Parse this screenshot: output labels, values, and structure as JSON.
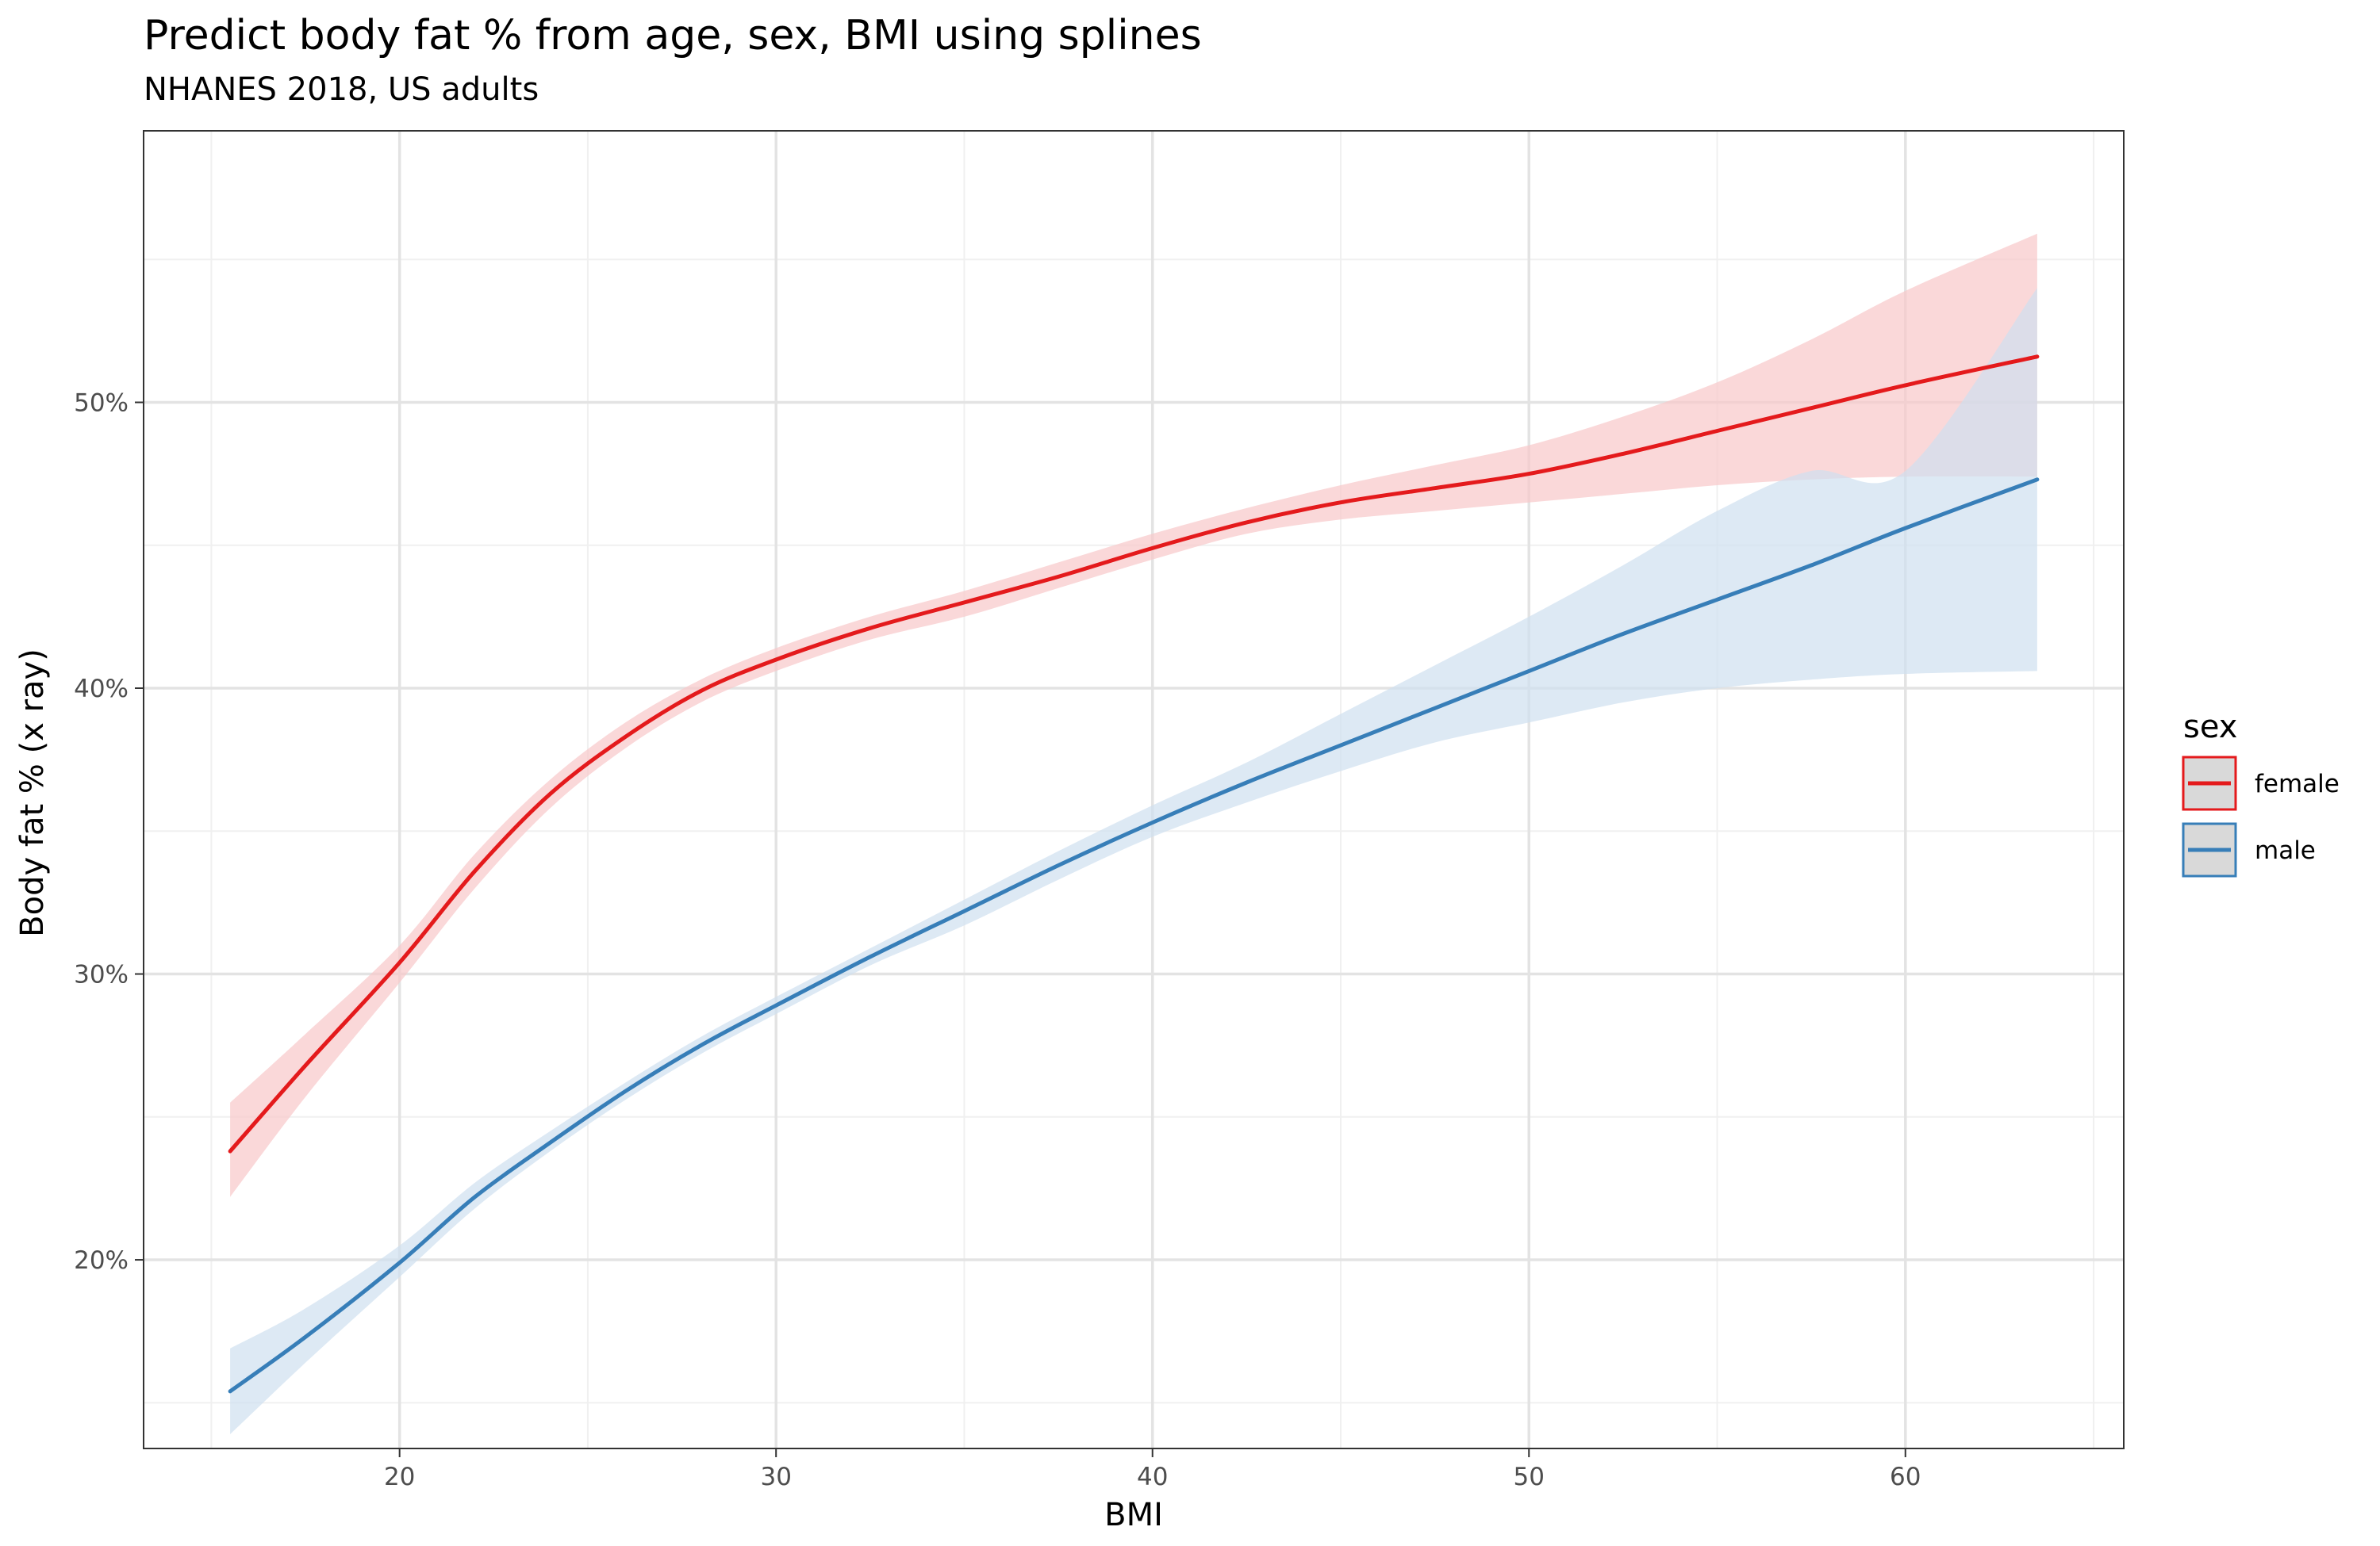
{
  "chart_data": {
    "type": "line",
    "title": "Predict body fat % from age, sex, BMI using splines",
    "subtitle": "NHANES 2018, US adults",
    "xlabel": "BMI",
    "ylabel": "Body fat % (x ray)",
    "xlim": [
      13.2,
      65.8
    ],
    "ylim": [
      13.4,
      59.5
    ],
    "x_ticks": [
      20,
      30,
      40,
      50,
      60
    ],
    "y_ticks": [
      20,
      30,
      40,
      50
    ],
    "y_tick_format": "percent",
    "grid": true,
    "legend": {
      "title": "sex",
      "position": "right"
    },
    "series": [
      {
        "name": "female",
        "color": "#e41a1c",
        "band_color": "#f8c8c9",
        "x": [
          15.5,
          17.5,
          20,
          22,
          24,
          26,
          28,
          30,
          32.5,
          35,
          37.5,
          40,
          42.5,
          45,
          47.5,
          50,
          52.5,
          55,
          57.5,
          60,
          63.5
        ],
        "y": [
          23.8,
          26.8,
          30.4,
          33.6,
          36.3,
          38.3,
          39.9,
          41.0,
          42.1,
          43.0,
          43.9,
          44.9,
          45.8,
          46.5,
          47.0,
          47.5,
          48.2,
          49.0,
          49.8,
          50.6,
          51.6
        ],
        "lower": [
          22.2,
          25.7,
          29.7,
          33.0,
          35.8,
          37.9,
          39.5,
          40.6,
          41.7,
          42.5,
          43.5,
          44.5,
          45.4,
          45.9,
          46.2,
          46.5,
          46.8,
          47.1,
          47.3,
          47.4,
          47.4
        ],
        "upper": [
          25.5,
          27.9,
          31.0,
          34.2,
          36.8,
          38.8,
          40.3,
          41.4,
          42.5,
          43.4,
          44.4,
          45.4,
          46.3,
          47.1,
          47.8,
          48.5,
          49.5,
          50.7,
          52.2,
          53.9,
          55.9
        ]
      },
      {
        "name": "male",
        "color": "#377eb8",
        "band_color": "#cfe0f0",
        "x": [
          15.5,
          17.5,
          20,
          22,
          24,
          26,
          28,
          30,
          32.5,
          35,
          37.5,
          40,
          42.5,
          45,
          47.5,
          50,
          52.5,
          55,
          57.5,
          60,
          63.5
        ],
        "y": [
          15.4,
          17.3,
          19.9,
          22.2,
          24.1,
          25.9,
          27.5,
          28.9,
          30.6,
          32.2,
          33.8,
          35.3,
          36.7,
          38.0,
          39.3,
          40.6,
          41.9,
          43.1,
          44.3,
          45.6,
          47.3
        ],
        "lower": [
          13.9,
          16.4,
          19.4,
          21.8,
          23.8,
          25.6,
          27.2,
          28.6,
          30.3,
          31.7,
          33.3,
          34.8,
          36.0,
          37.1,
          38.1,
          38.8,
          39.5,
          40.0,
          40.3,
          40.5,
          40.6
        ],
        "upper": [
          16.9,
          18.3,
          20.5,
          22.7,
          24.5,
          26.2,
          27.8,
          29.2,
          30.9,
          32.6,
          34.3,
          35.9,
          37.4,
          39.1,
          40.8,
          42.5,
          44.3,
          46.2,
          47.6,
          47.6,
          54.0
        ]
      }
    ]
  }
}
